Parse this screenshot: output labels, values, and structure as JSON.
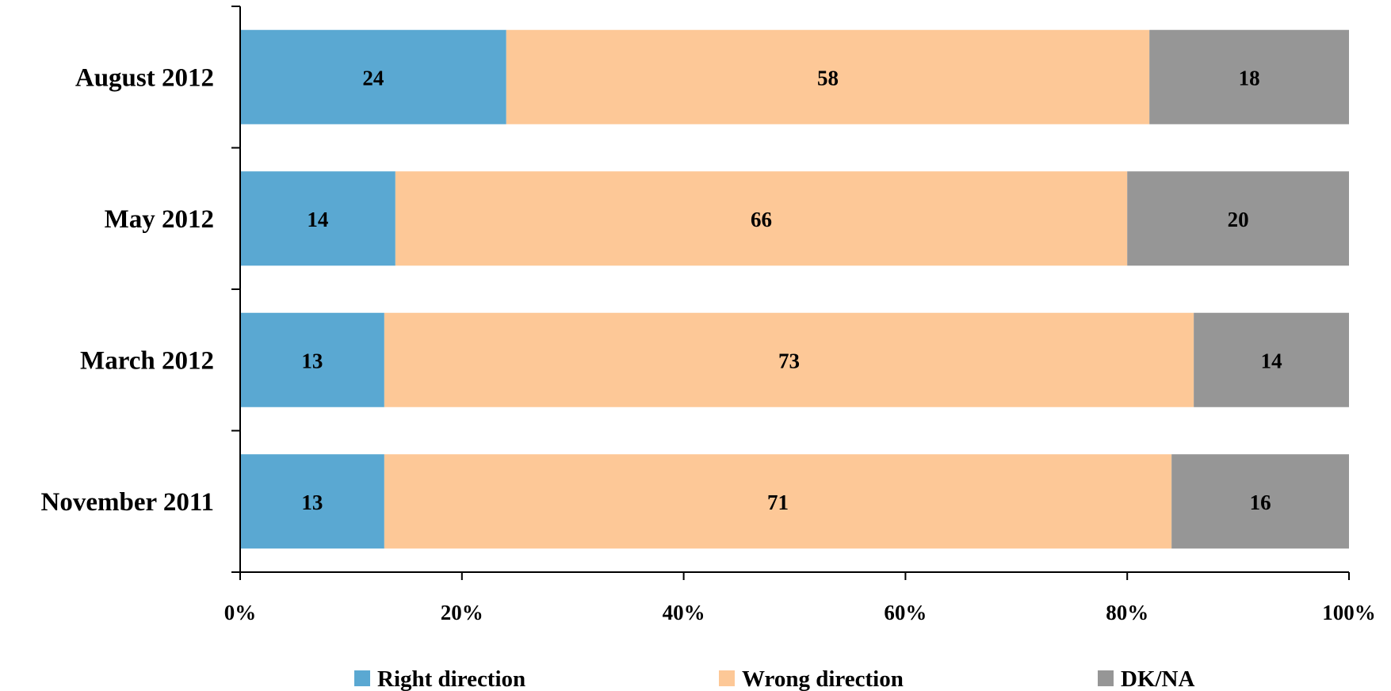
{
  "chart_data": {
    "type": "bar",
    "orientation": "horizontal",
    "stacked": true,
    "categories": [
      "August 2012",
      "May 2012",
      "March 2012",
      "November 2011"
    ],
    "series": [
      {
        "name": "Right direction",
        "values": [
          24,
          14,
          13,
          13
        ],
        "color": "#5aa8d2"
      },
      {
        "name": "Wrong direction",
        "values": [
          58,
          66,
          73,
          71
        ],
        "color": "#fdc897"
      },
      {
        "name": "DK/NA",
        "values": [
          18,
          20,
          14,
          16
        ],
        "color": "#969696"
      }
    ],
    "xlim": [
      0,
      100
    ],
    "xticks": [
      "0%",
      "20%",
      "40%",
      "60%",
      "80%",
      "100%"
    ],
    "grid": false,
    "legend_position": "bottom"
  }
}
